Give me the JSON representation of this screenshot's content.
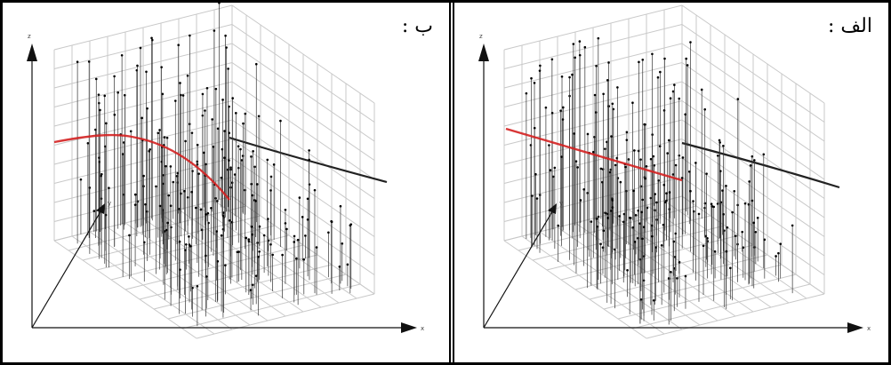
{
  "colors": {
    "grid": "#c8c8c8",
    "stem": "#333333",
    "red_curve": "#d42020",
    "black_curve": "#222222",
    "axis": "#111111"
  },
  "chart_data": [
    {
      "type": "scatter",
      "panel_label": "ب :",
      "style": "3d-stem",
      "axes": {
        "x_label": "x",
        "y_label": "y",
        "z_label": "z"
      },
      "grid": true,
      "red_curve_shape": "curved",
      "points": []
    },
    {
      "type": "scatter",
      "panel_label": "الف :",
      "style": "3d-stem",
      "axes": {
        "x_label": "x",
        "y_label": "y",
        "z_label": "z"
      },
      "grid": true,
      "red_curve_shape": "linear",
      "points": []
    }
  ]
}
